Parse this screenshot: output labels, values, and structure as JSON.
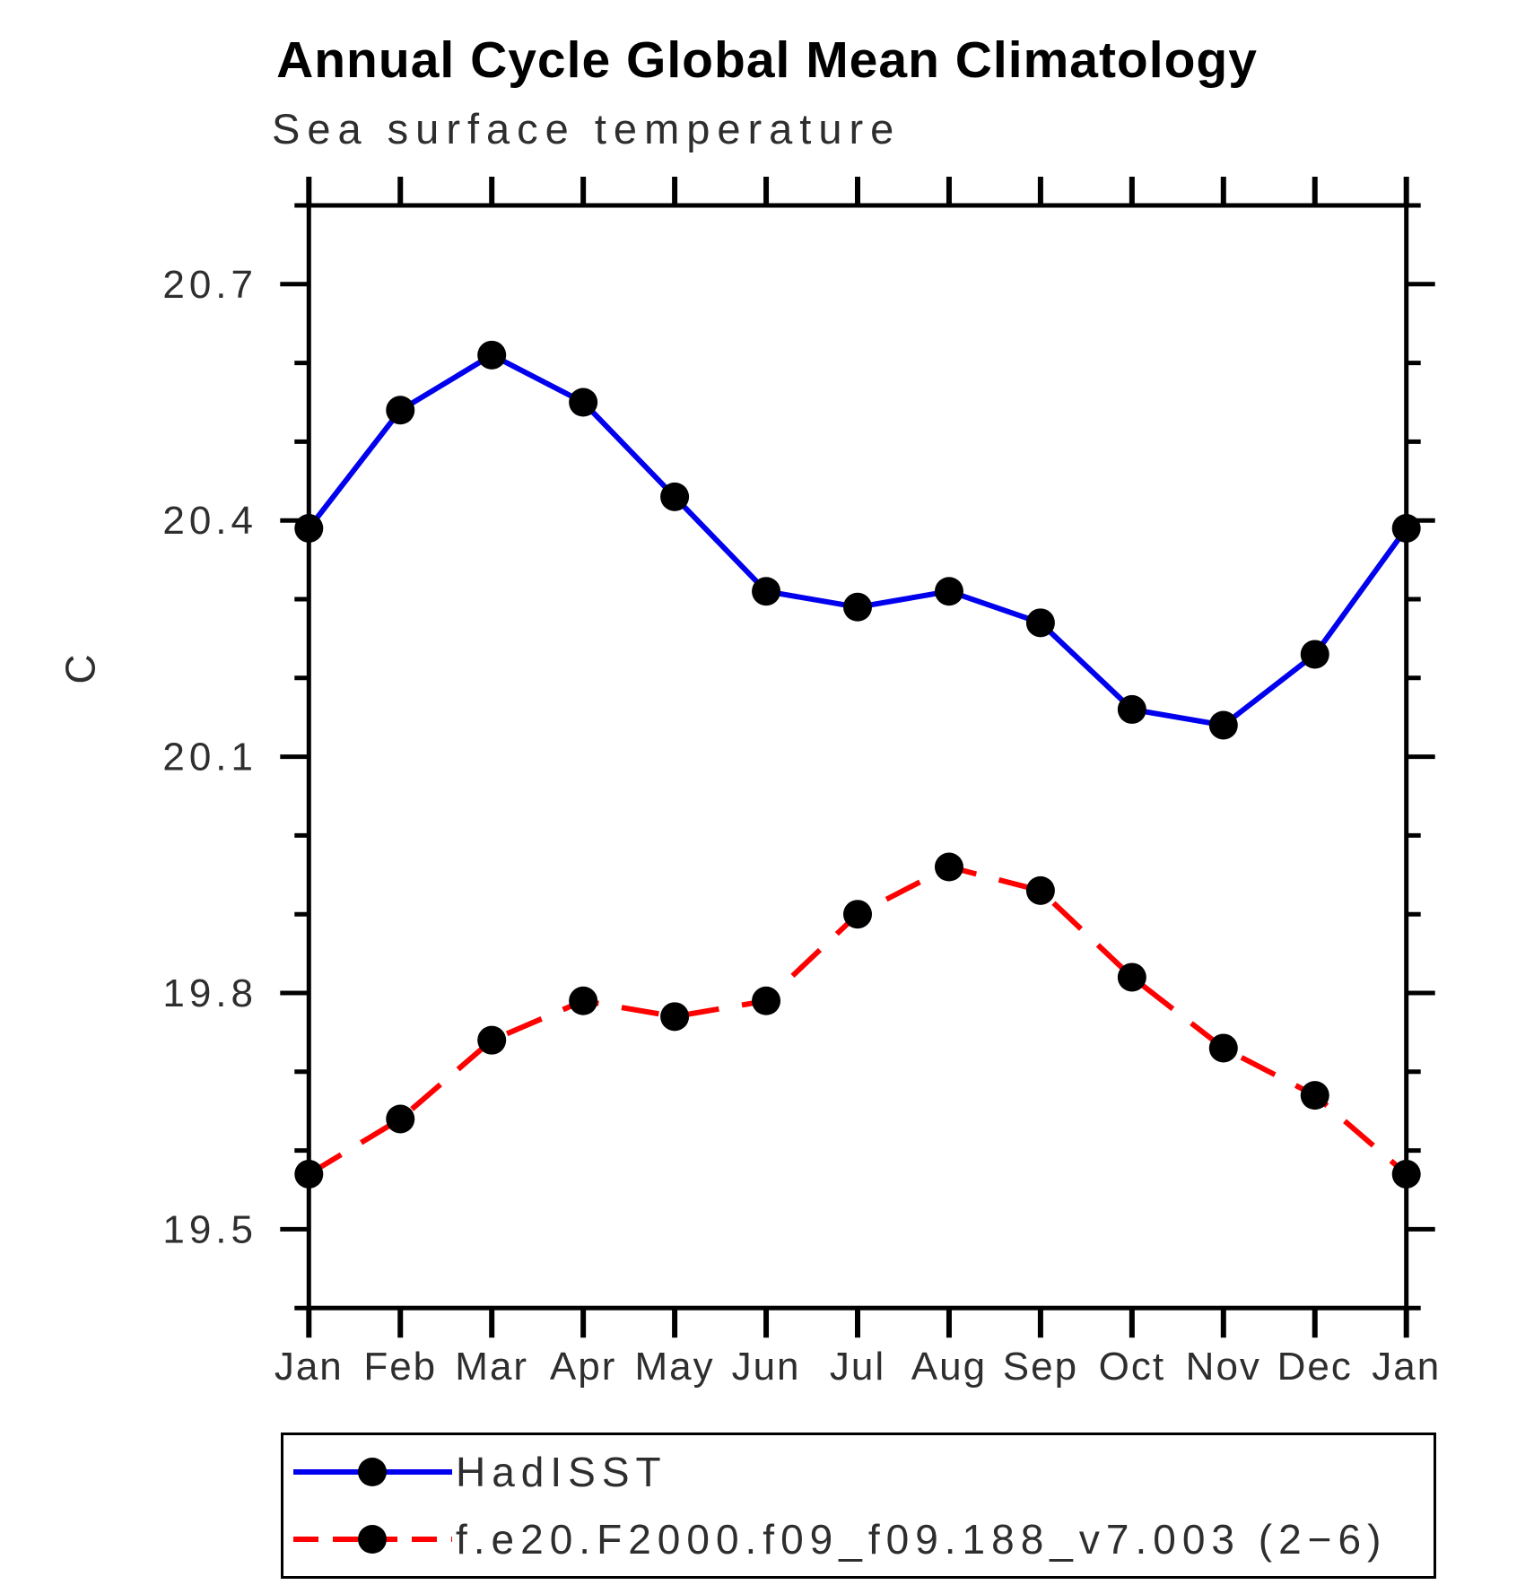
{
  "page": {
    "background": "#ffffff"
  },
  "chart_data": {
    "type": "line",
    "title": "Annual Cycle Global Mean Climatology",
    "subtitle": "Sea surface temperature",
    "ylabel": "C",
    "xlabel": "",
    "x_categories": [
      "Jan",
      "Feb",
      "Mar",
      "Apr",
      "May",
      "Jun",
      "Jul",
      "Aug",
      "Sep",
      "Oct",
      "Nov",
      "Dec",
      "Jan"
    ],
    "y_axis": {
      "min": 19.4,
      "max": 20.8,
      "major_ticks": [
        19.5,
        19.8,
        20.1,
        20.4,
        20.7
      ],
      "minor_tick_step": 0.1
    },
    "grid": "off",
    "legend_position": "bottom-left-box",
    "series": [
      {
        "name": "HadISST",
        "color": "#0000ee",
        "line_style": "solid",
        "marker": "filled-circle",
        "marker_color": "#000000",
        "values": [
          20.39,
          20.54,
          20.61,
          20.55,
          20.43,
          20.31,
          20.29,
          20.31,
          20.27,
          20.16,
          20.14,
          20.23,
          20.39
        ]
      },
      {
        "name": "f.e20.F2000.f09_f09.188_v7.003 (2−6)",
        "color": "#ff0000",
        "line_style": "dashed",
        "marker": "filled-circle",
        "marker_color": "#000000",
        "values": [
          19.57,
          19.64,
          19.74,
          19.79,
          19.77,
          19.79,
          19.9,
          19.96,
          19.93,
          19.82,
          19.73,
          19.67,
          19.57
        ]
      }
    ]
  }
}
